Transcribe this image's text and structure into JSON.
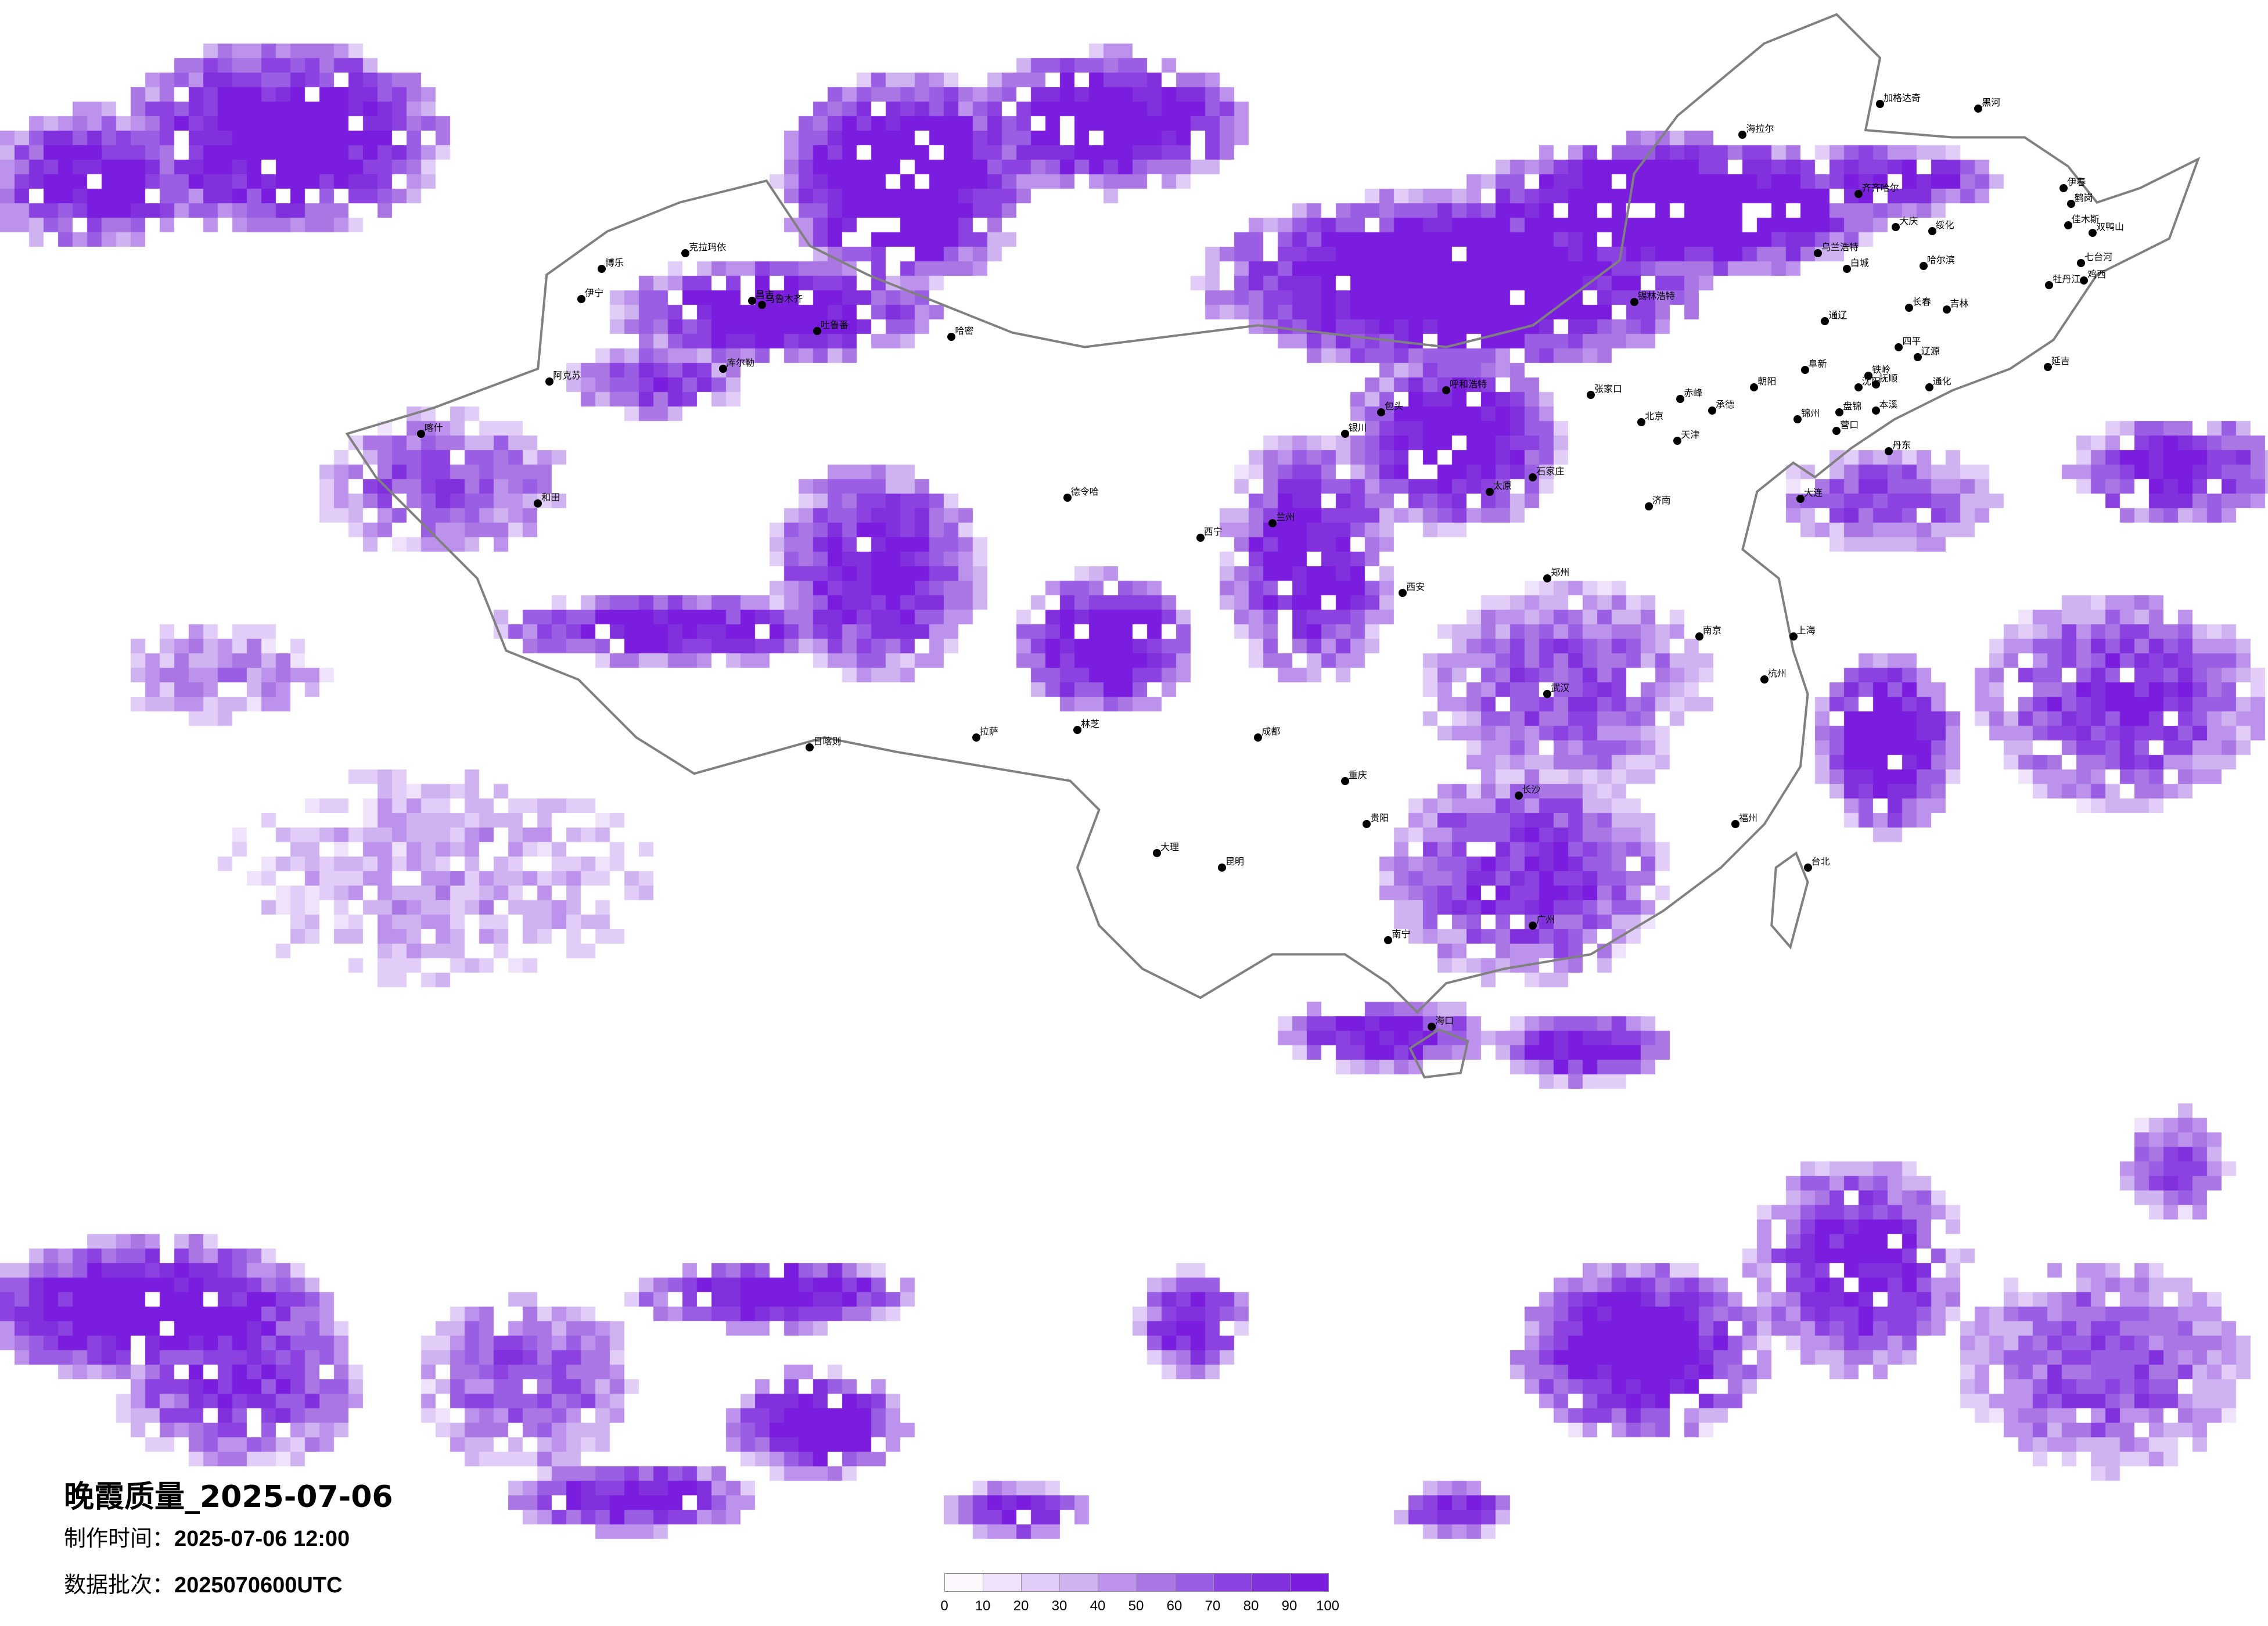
{
  "title": "晚霞质量_2025-07-06",
  "produced": {
    "label": "制作时间：",
    "value": "2025-07-06 12:00"
  },
  "batch": {
    "label": "数据批次：",
    "value": "2025070600UTC"
  },
  "legend": {
    "ticks": [
      "0",
      "10",
      "20",
      "30",
      "40",
      "50",
      "60",
      "70",
      "80",
      "90",
      "100"
    ],
    "colors": [
      "#fcf8fd",
      "#efe3fb",
      "#e1cdf8",
      "#cfb3f0",
      "#bd92ec",
      "#aa76e3",
      "#9a5ee4",
      "#8b42e0",
      "#8130dd",
      "#7a1ddf"
    ]
  },
  "border_color": "#808080",
  "cities": [
    "博乐",
    "伊宁",
    "克拉玛依",
    "昌吉",
    "乌鲁木齐",
    "吐鲁番",
    "哈密",
    "库尔勒",
    "阿克苏",
    "和田",
    "喀什",
    "加格达奇",
    "黑河",
    "海拉尔",
    "齐齐哈尔",
    "大庆",
    "绥化",
    "哈尔滨",
    "伊春",
    "鹤岗",
    "佳木斯",
    "双鸭山",
    "七台河",
    "鸡西",
    "牡丹江",
    "乌兰浩特",
    "白城",
    "锡林浩特",
    "通辽",
    "长春",
    "吉林",
    "四平",
    "辽源",
    "延吉",
    "赤峰",
    "阜新",
    "朝阳",
    "铁岭",
    "沈阳",
    "抚顺",
    "锦州",
    "盘锦",
    "营口",
    "本溪",
    "通化",
    "承德",
    "张家口",
    "丹东",
    "德令哈",
    "日喀则",
    "拉萨",
    "林芝",
    "昆明",
    "大理",
    "西宁",
    "兰州",
    "银川",
    "成都",
    "重庆",
    "贵阳",
    "南宁",
    "广州",
    "海口",
    "台北",
    "福州",
    "杭州",
    "上海",
    "南京",
    "武汉",
    "长沙",
    "郑州",
    "济南",
    "石家庄",
    "太原",
    "西安",
    "北京",
    "天津",
    "大连",
    "呼和浩特",
    "包头"
  ]
}
